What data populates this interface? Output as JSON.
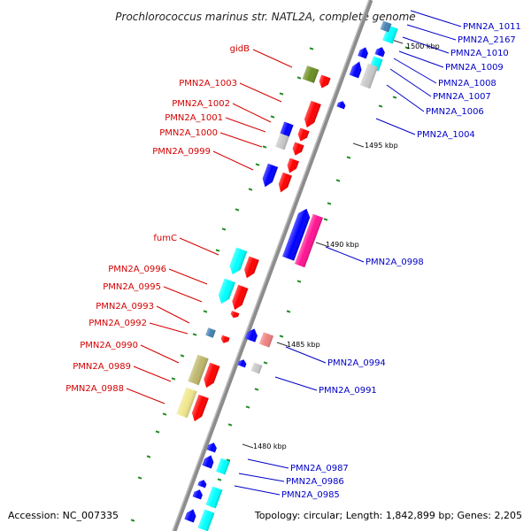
{
  "title": "Prochlorococcus marinus str. NATL2A, complete genome",
  "accession": "Accession: NC_007335",
  "summary": "Topology: circular; Length: 1,842,899 bp; Genes: 2,205",
  "colors": {
    "forward_label": "#d40000",
    "reverse_label": "#0000c8",
    "red": "#ff0000",
    "blue": "#0000ff",
    "cyan": "#00ffff",
    "grey": "#c8c8c8",
    "olive": "#6b8e23",
    "pink": "#ff1493",
    "salmon": "#f08080",
    "steel": "#4682b4",
    "khaki": "#bdb76b",
    "lightkhaki": "#f0e68c",
    "gc_skew": "#228b22"
  },
  "kbp_marks": [
    {
      "label": "1500 kbp"
    },
    {
      "label": "1495 kbp"
    },
    {
      "label": "1490 kbp"
    },
    {
      "label": "1485 kbp"
    },
    {
      "label": "1480 kbp"
    }
  ],
  "forward_genes": [
    {
      "name": "gidB"
    },
    {
      "name": "PMN2A_1003"
    },
    {
      "name": "PMN2A_1002"
    },
    {
      "name": "PMN2A_1001"
    },
    {
      "name": "PMN2A_1000"
    },
    {
      "name": "PMN2A_0999"
    },
    {
      "name": "fumC"
    },
    {
      "name": "PMN2A_0996"
    },
    {
      "name": "PMN2A_0995"
    },
    {
      "name": "PMN2A_0993"
    },
    {
      "name": "PMN2A_0992"
    },
    {
      "name": "PMN2A_0990"
    },
    {
      "name": "PMN2A_0989"
    },
    {
      "name": "PMN2A_0988"
    }
  ],
  "reverse_genes": [
    {
      "name": "PMN2A_1011"
    },
    {
      "name": "PMN2A_2167"
    },
    {
      "name": "PMN2A_1010"
    },
    {
      "name": "PMN2A_1009"
    },
    {
      "name": "PMN2A_1008"
    },
    {
      "name": "PMN2A_1007"
    },
    {
      "name": "PMN2A_1006"
    },
    {
      "name": "PMN2A_1004"
    },
    {
      "name": "PMN2A_0998"
    },
    {
      "name": "PMN2A_0994"
    },
    {
      "name": "PMN2A_0991"
    },
    {
      "name": "PMN2A_0987"
    },
    {
      "name": "PMN2A_0986"
    },
    {
      "name": "PMN2A_0985"
    }
  ]
}
